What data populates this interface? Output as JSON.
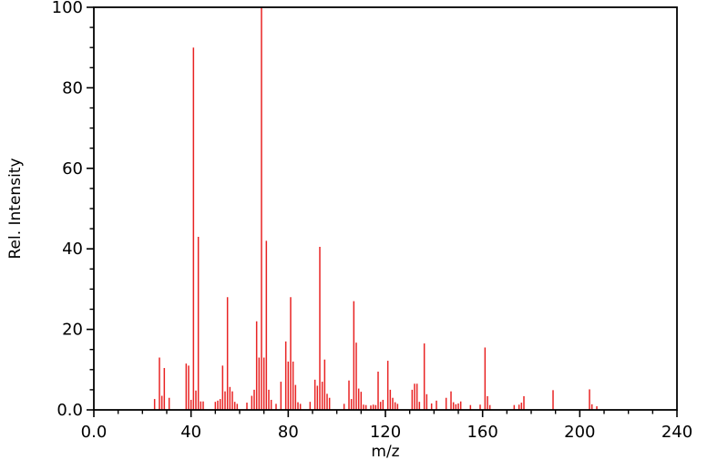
{
  "chart_data": {
    "type": "bar",
    "subtype": "mass-spectrum-stick-plot",
    "title": "",
    "xlabel": "m/z",
    "ylabel": "Rel. Intensity",
    "xlim": [
      0,
      240
    ],
    "ylim": [
      0,
      100
    ],
    "x_major_ticks": [
      {
        "v": 0,
        "label": "0.0"
      },
      {
        "v": 40,
        "label": "40"
      },
      {
        "v": 80,
        "label": "80"
      },
      {
        "v": 120,
        "label": "120"
      },
      {
        "v": 160,
        "label": "160"
      },
      {
        "v": 200,
        "label": "200"
      },
      {
        "v": 240,
        "label": "240"
      }
    ],
    "x_minor_step": 10,
    "y_major_ticks": [
      {
        "v": 0,
        "label": "0.0"
      },
      {
        "v": 20,
        "label": "20"
      },
      {
        "v": 40,
        "label": "40"
      },
      {
        "v": 60,
        "label": "60"
      },
      {
        "v": 80,
        "label": "80"
      },
      {
        "v": 100,
        "label": "100"
      }
    ],
    "y_minor_step": 5,
    "grid": false,
    "legend": "none",
    "frame": true,
    "peak_color": "#e82323",
    "axis_color": "#000000",
    "background_color": "#ffffff",
    "peaks": [
      [
        25,
        2.7
      ],
      [
        27,
        13
      ],
      [
        28,
        3.5
      ],
      [
        29,
        10.4
      ],
      [
        31,
        3
      ],
      [
        38,
        11.5
      ],
      [
        39,
        11
      ],
      [
        40,
        2.5
      ],
      [
        41,
        90
      ],
      [
        42,
        4.8
      ],
      [
        43,
        43
      ],
      [
        44,
        2.1
      ],
      [
        45,
        2.1
      ],
      [
        50,
        2
      ],
      [
        51,
        2.3
      ],
      [
        52,
        2.7
      ],
      [
        53,
        11
      ],
      [
        54,
        4.6
      ],
      [
        55,
        28
      ],
      [
        56,
        5.7
      ],
      [
        57,
        4.6
      ],
      [
        58,
        2
      ],
      [
        59,
        1.5
      ],
      [
        63,
        1.8
      ],
      [
        65,
        3.5
      ],
      [
        66,
        5
      ],
      [
        67,
        22
      ],
      [
        68,
        13
      ],
      [
        69,
        100
      ],
      [
        70,
        13
      ],
      [
        71,
        42
      ],
      [
        72,
        5
      ],
      [
        73,
        2.5
      ],
      [
        75,
        1.5
      ],
      [
        77,
        7
      ],
      [
        79,
        17
      ],
      [
        80,
        12
      ],
      [
        81,
        28
      ],
      [
        82,
        12
      ],
      [
        83,
        6.2
      ],
      [
        84,
        1.9
      ],
      [
        85,
        1.5
      ],
      [
        89,
        2
      ],
      [
        91,
        7.5
      ],
      [
        92,
        6
      ],
      [
        93,
        40.5
      ],
      [
        94,
        7
      ],
      [
        95,
        12.5
      ],
      [
        96,
        4
      ],
      [
        97,
        3
      ],
      [
        103,
        1.5
      ],
      [
        105,
        7.3
      ],
      [
        106,
        2.7
      ],
      [
        107,
        27
      ],
      [
        108,
        16.7
      ],
      [
        109,
        5.3
      ],
      [
        110,
        4.5
      ],
      [
        111,
        1.3
      ],
      [
        112,
        1.2
      ],
      [
        114,
        1.1
      ],
      [
        115,
        1.3
      ],
      [
        116,
        1.2
      ],
      [
        117,
        9.5
      ],
      [
        118,
        2
      ],
      [
        119,
        2.5
      ],
      [
        121,
        12.2
      ],
      [
        122,
        5
      ],
      [
        123,
        3
      ],
      [
        124,
        1.9
      ],
      [
        125,
        1.5
      ],
      [
        131,
        5
      ],
      [
        132,
        6.5
      ],
      [
        133,
        6.5
      ],
      [
        134,
        2
      ],
      [
        136,
        16.5
      ],
      [
        137,
        3.9
      ],
      [
        139,
        1.6
      ],
      [
        141,
        2.3
      ],
      [
        145,
        3
      ],
      [
        147,
        4.6
      ],
      [
        148,
        1.9
      ],
      [
        149,
        1.4
      ],
      [
        150,
        1.6
      ],
      [
        151,
        2.1
      ],
      [
        155,
        1.2
      ],
      [
        159,
        1.3
      ],
      [
        161,
        15.5
      ],
      [
        162,
        3.4
      ],
      [
        163,
        1.2
      ],
      [
        173,
        1.2
      ],
      [
        175,
        1.3
      ],
      [
        176,
        1.8
      ],
      [
        177,
        3.4
      ],
      [
        189,
        4.9
      ],
      [
        204,
        5.1
      ],
      [
        205,
        1.4
      ],
      [
        207,
        0.9
      ]
    ]
  }
}
